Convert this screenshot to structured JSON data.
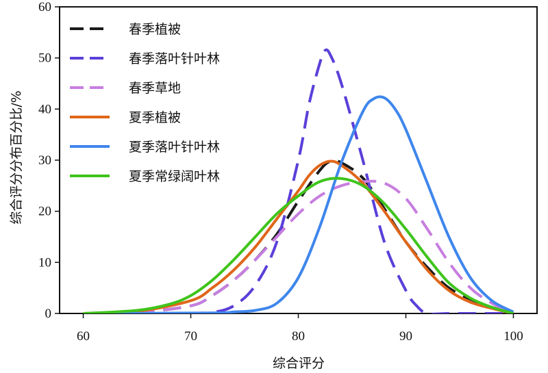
{
  "chart_data": {
    "type": "line",
    "xlabel": "综合评分",
    "ylabel": "综合评分分布百分比/%",
    "xlim": [
      60,
      100
    ],
    "ylim": [
      0,
      60
    ],
    "xticks": [
      60,
      70,
      80,
      90,
      100
    ],
    "yticks": [
      0,
      10,
      20,
      30,
      40,
      50,
      60
    ],
    "grid": false,
    "legend_position": "top-left",
    "series": [
      {
        "name": "春季植被",
        "color": "#1a1a1a",
        "dash": true,
        "x": [
          60,
          65,
          70,
          72,
          74,
          76,
          78,
          80,
          82,
          83,
          84,
          86,
          88,
          90,
          92,
          94,
          96,
          98,
          100
        ],
        "y": [
          0,
          0.2,
          1.5,
          3.5,
          6.5,
          10.5,
          15.5,
          22,
          28,
          29.8,
          29.5,
          26.5,
          20.5,
          14,
          9,
          5,
          2.8,
          1.2,
          0
        ]
      },
      {
        "name": "春季落叶针叶林",
        "color": "#5b3fd9",
        "dash": true,
        "x": [
          60,
          70,
          72,
          74,
          76,
          78,
          80,
          81,
          82,
          82.5,
          83,
          84,
          86,
          88,
          90,
          91,
          92,
          94,
          96,
          98,
          100
        ],
        "y": [
          0,
          0,
          0.2,
          1.5,
          5.5,
          14,
          30,
          41,
          49,
          51.5,
          50.5,
          45,
          30,
          14,
          4.5,
          1.5,
          0,
          0,
          0,
          0,
          0
        ]
      },
      {
        "name": "春季草地",
        "color": "#c77ee0",
        "dash": true,
        "x": [
          60,
          65,
          70,
          72,
          74,
          76,
          78,
          80,
          82,
          84,
          86,
          88,
          90,
          92,
          94,
          96,
          98,
          100
        ],
        "y": [
          0,
          0.2,
          1.5,
          3.5,
          6.5,
          10.5,
          15,
          19.5,
          23,
          25,
          25.8,
          25.5,
          22.5,
          16.5,
          10,
          5,
          2,
          0
        ]
      },
      {
        "name": "夏季植被",
        "color": "#e0661a",
        "dash": false,
        "x": [
          60,
          65,
          70,
          72,
          74,
          76,
          78,
          80,
          81,
          82,
          83,
          84,
          86,
          88,
          90,
          92,
          94,
          96,
          98,
          100
        ],
        "y": [
          0,
          0.4,
          2.5,
          5,
          8.5,
          13,
          18.5,
          24,
          27,
          29,
          29.8,
          29,
          25.5,
          20,
          14,
          8.5,
          4.5,
          2.2,
          1,
          0
        ]
      },
      {
        "name": "夏季落叶针叶林",
        "color": "#3f86ec",
        "dash": false,
        "x": [
          60,
          72,
          74,
          76,
          78,
          80,
          82,
          84,
          86,
          87,
          88,
          89,
          90,
          92,
          94,
          96,
          98,
          100
        ],
        "y": [
          0,
          0.1,
          0.3,
          0.6,
          2,
          7,
          17,
          29.5,
          39.5,
          42,
          42.2,
          40,
          36,
          25.5,
          15,
          7,
          2.5,
          0.3
        ]
      },
      {
        "name": "夏季常绿阔叶林",
        "color": "#3fc41c",
        "dash": false,
        "x": [
          60,
          65,
          68,
          70,
          72,
          74,
          76,
          78,
          80,
          82,
          84,
          86,
          88,
          90,
          92,
          94,
          96,
          98,
          100
        ],
        "y": [
          0,
          0.6,
          1.8,
          3.5,
          6.5,
          10.5,
          15,
          19.5,
          23,
          25.8,
          26.4,
          25,
          21.5,
          16.5,
          11,
          6,
          3,
          1.2,
          0
        ]
      }
    ]
  }
}
